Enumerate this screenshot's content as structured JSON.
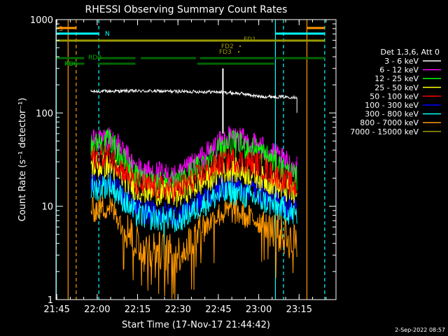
{
  "chart_data": {
    "type": "line",
    "title": "RHESSI Observing Summary Count Rates",
    "xlabel": "Start Time (17-Nov-17 21:44:42)",
    "ylabel": "Count Rate (s⁻¹ detector⁻¹)",
    "yscale": "log",
    "ylim": [
      1,
      1000
    ],
    "xlim_minutes": [
      0,
      104
    ],
    "x_ticks": [
      {
        "m": 0.3,
        "label": "21:45"
      },
      {
        "m": 15.3,
        "label": "22:00"
      },
      {
        "m": 30.3,
        "label": "22:15"
      },
      {
        "m": 45.3,
        "label": "22:30"
      },
      {
        "m": 60.3,
        "label": "22:45"
      },
      {
        "m": 75.3,
        "label": "23:00"
      },
      {
        "m": 90.3,
        "label": "23:15"
      }
    ],
    "y_ticks": [
      {
        "v": 1,
        "label": "1"
      },
      {
        "v": 10,
        "label": "10"
      },
      {
        "v": 100,
        "label": "100"
      },
      {
        "v": 1000,
        "label": "1000"
      }
    ],
    "legend_title": "Det 1,3,6, Att 0",
    "series": [
      {
        "name": "3 - 6 keV",
        "color": "#ffffff"
      },
      {
        "name": "6 - 12 keV",
        "color": "#ff00ff"
      },
      {
        "name": "12 - 25 keV",
        "color": "#00ff00"
      },
      {
        "name": "25 - 50 keV",
        "color": "#ffff00"
      },
      {
        "name": "50 - 100 keV",
        "color": "#ff0000"
      },
      {
        "name": "100 - 300 keV",
        "color": "#0000ff"
      },
      {
        "name": "300 - 800 keV",
        "color": "#00ffff"
      },
      {
        "name": "800 - 7000 keV",
        "color": "#ff9900"
      },
      {
        "name": "7000 - 15000 keV",
        "color": "#999900"
      }
    ],
    "plot_order": [
      "3 - 6 keV",
      "6 - 12 keV",
      "12 - 25 keV",
      "100 - 300 keV",
      "25 - 50 keV",
      "50 - 100 keV",
      "300 - 800 keV",
      "800 - 7000 keV"
    ],
    "sample_points": {
      "3 - 6 keV": [
        [
          13,
          170
        ],
        [
          30,
          172
        ],
        [
          45,
          170
        ],
        [
          60,
          168
        ],
        [
          70,
          160
        ],
        [
          75,
          150
        ],
        [
          89,
          148
        ]
      ],
      "6 - 12 keV": [
        [
          13,
          50
        ],
        [
          20,
          55
        ],
        [
          30,
          25
        ],
        [
          45,
          20
        ],
        [
          60,
          45
        ],
        [
          65,
          55
        ],
        [
          75,
          45
        ],
        [
          89,
          25
        ]
      ],
      "12 - 25 keV": [
        [
          13,
          45
        ],
        [
          20,
          50
        ],
        [
          30,
          20
        ],
        [
          45,
          17
        ],
        [
          60,
          40
        ],
        [
          65,
          48
        ],
        [
          75,
          40
        ],
        [
          89,
          20
        ]
      ],
      "25 - 50 keV": [
        [
          13,
          27
        ],
        [
          20,
          27
        ],
        [
          30,
          15
        ],
        [
          45,
          13
        ],
        [
          60,
          22
        ],
        [
          65,
          25
        ],
        [
          75,
          21
        ],
        [
          89,
          13
        ]
      ],
      "50 - 100 keV": [
        [
          13,
          33
        ],
        [
          20,
          35
        ],
        [
          30,
          17
        ],
        [
          45,
          15
        ],
        [
          60,
          28
        ],
        [
          65,
          32
        ],
        [
          75,
          28
        ],
        [
          89,
          16
        ]
      ],
      "100 - 300 keV": [
        [
          13,
          18
        ],
        [
          20,
          19
        ],
        [
          30,
          9
        ],
        [
          45,
          8
        ],
        [
          60,
          15
        ],
        [
          65,
          17
        ],
        [
          75,
          15
        ],
        [
          89,
          9
        ]
      ],
      "300 - 800 keV": [
        [
          13,
          15
        ],
        [
          20,
          17
        ],
        [
          30,
          8
        ],
        [
          45,
          7
        ],
        [
          60,
          13
        ],
        [
          65,
          14
        ],
        [
          75,
          12
        ],
        [
          89,
          8
        ]
      ],
      "800 - 7000 keV": [
        [
          13,
          9
        ],
        [
          20,
          10
        ],
        [
          30,
          4
        ],
        [
          45,
          3
        ],
        [
          60,
          8
        ],
        [
          65,
          9
        ],
        [
          75,
          7
        ],
        [
          89,
          4
        ]
      ]
    },
    "flare_spike": {
      "x": 62,
      "y": 300,
      "color": "#ffffff"
    },
    "vlines": [
      {
        "m": 0.1,
        "color": "#00ffff",
        "dash": false
      },
      {
        "m": 4.5,
        "color": "#ff9900",
        "dash": false
      },
      {
        "m": 7.5,
        "color": "#ff9900",
        "dash": true
      },
      {
        "m": 15.9,
        "color": "#00ffff",
        "dash": true
      },
      {
        "m": 81.5,
        "color": "#00ffff",
        "dash": false
      },
      {
        "m": 84.5,
        "color": "#00ffff",
        "dash": true
      },
      {
        "m": 93.2,
        "color": "#ff9900",
        "dash": false
      },
      {
        "m": 99.8,
        "color": "#00ffff",
        "dash": true
      }
    ],
    "flag_bars": [
      {
        "label": "S",
        "color": "#ff9900",
        "segments": [
          [
            0.3,
            7.5
          ],
          [
            93.2,
            99.8
          ]
        ]
      },
      {
        "label": "N",
        "color": "#00ffff",
        "segments": [
          [
            0.3,
            15.9
          ],
          [
            81.5,
            99.8
          ]
        ]
      },
      {
        "label": "FD1",
        "color": "#999900",
        "segments": [
          [
            0.3,
            99.8
          ]
        ]
      },
      {
        "label": "RD0",
        "color": "#006600",
        "segments": [
          [
            0.3,
            10.5
          ],
          [
            15.5,
            29.5
          ],
          [
            31.5,
            52.0
          ],
          [
            53.5,
            81.0
          ],
          [
            81.5,
            99.8
          ]
        ]
      },
      {
        "label": "RD6",
        "color": "#006600",
        "segments": [
          [
            3.5,
            10.5
          ],
          [
            15.5,
            29.5
          ],
          [
            52.5,
            81.0
          ]
        ]
      }
    ],
    "flag_labels": [
      {
        "text": "S",
        "color": "#ff9900"
      },
      {
        "text": "N",
        "color": "#00ffff"
      },
      {
        "text": "FD1",
        "color": "#999900"
      },
      {
        "text": "FD2",
        "color": "#999900"
      },
      {
        "text": "FD3",
        "color": "#999900"
      },
      {
        "text": "RD0",
        "color": "#00aa00"
      },
      {
        "text": "RD6",
        "color": "#00aa00"
      }
    ]
  },
  "footer_timestamp": "2-Sep-2022 08:57"
}
